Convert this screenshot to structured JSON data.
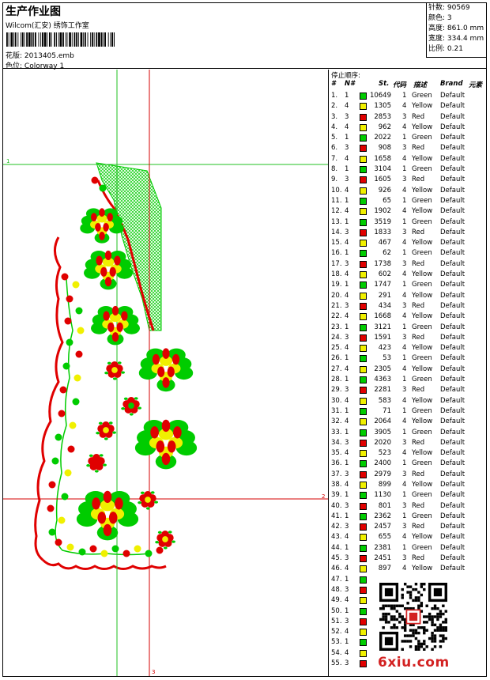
{
  "header": {
    "title": "生产作业图",
    "company": "Wilcom(汇安) 绣饰工作室",
    "design_label": "花版:",
    "design_value": "2013405.emb",
    "colorway_label": "色位:",
    "colorway_value": "Colorway 1"
  },
  "stats": {
    "stitches_label": "针数:",
    "stitches_value": "90569",
    "colors_label": "颜色:",
    "colors_value": "3",
    "height_label": "高度:",
    "height_value": "861.0 mm",
    "width_label": "宽度:",
    "width_value": "334.4 mm",
    "scale_label": "比例:",
    "scale_value": "0.21"
  },
  "canvas": {
    "origin_label": "1",
    "right_marker": "2",
    "bottom_marker": "3"
  },
  "stop_sequence": {
    "title": "停止顺序:",
    "headers": {
      "index": "#",
      "needle": "N#",
      "stitches": "St.",
      "code": "代码",
      "desc": "描述",
      "brand": "Brand",
      "element": "元素"
    },
    "rows": [
      {
        "i": "1.",
        "n": "1",
        "st": "10649",
        "c": "1",
        "d": "Green",
        "b": "Default",
        "color": "#00cc00"
      },
      {
        "i": "2.",
        "n": "4",
        "st": "1305",
        "c": "4",
        "d": "Yellow",
        "b": "Default",
        "color": "#f0f000"
      },
      {
        "i": "3.",
        "n": "3",
        "st": "2853",
        "c": "3",
        "d": "Red",
        "b": "Default",
        "color": "#e00000"
      },
      {
        "i": "4.",
        "n": "4",
        "st": "962",
        "c": "4",
        "d": "Yellow",
        "b": "Default",
        "color": "#f0f000"
      },
      {
        "i": "5.",
        "n": "1",
        "st": "2022",
        "c": "1",
        "d": "Green",
        "b": "Default",
        "color": "#00cc00"
      },
      {
        "i": "6.",
        "n": "3",
        "st": "908",
        "c": "3",
        "d": "Red",
        "b": "Default",
        "color": "#e00000"
      },
      {
        "i": "7.",
        "n": "4",
        "st": "1658",
        "c": "4",
        "d": "Yellow",
        "b": "Default",
        "color": "#f0f000"
      },
      {
        "i": "8.",
        "n": "1",
        "st": "3104",
        "c": "1",
        "d": "Green",
        "b": "Default",
        "color": "#00cc00"
      },
      {
        "i": "9.",
        "n": "3",
        "st": "1605",
        "c": "3",
        "d": "Red",
        "b": "Default",
        "color": "#e00000"
      },
      {
        "i": "10.",
        "n": "4",
        "st": "926",
        "c": "4",
        "d": "Yellow",
        "b": "Default",
        "color": "#f0f000"
      },
      {
        "i": "11.",
        "n": "1",
        "st": "65",
        "c": "1",
        "d": "Green",
        "b": "Default",
        "color": "#00cc00"
      },
      {
        "i": "12.",
        "n": "4",
        "st": "1902",
        "c": "4",
        "d": "Yellow",
        "b": "Default",
        "color": "#f0f000"
      },
      {
        "i": "13.",
        "n": "1",
        "st": "3519",
        "c": "1",
        "d": "Green",
        "b": "Default",
        "color": "#00cc00"
      },
      {
        "i": "14.",
        "n": "3",
        "st": "1833",
        "c": "3",
        "d": "Red",
        "b": "Default",
        "color": "#e00000"
      },
      {
        "i": "15.",
        "n": "4",
        "st": "467",
        "c": "4",
        "d": "Yellow",
        "b": "Default",
        "color": "#f0f000"
      },
      {
        "i": "16.",
        "n": "1",
        "st": "62",
        "c": "1",
        "d": "Green",
        "b": "Default",
        "color": "#00cc00"
      },
      {
        "i": "17.",
        "n": "3",
        "st": "1738",
        "c": "3",
        "d": "Red",
        "b": "Default",
        "color": "#e00000"
      },
      {
        "i": "18.",
        "n": "4",
        "st": "602",
        "c": "4",
        "d": "Yellow",
        "b": "Default",
        "color": "#f0f000"
      },
      {
        "i": "19.",
        "n": "1",
        "st": "1747",
        "c": "1",
        "d": "Green",
        "b": "Default",
        "color": "#00cc00"
      },
      {
        "i": "20.",
        "n": "4",
        "st": "291",
        "c": "4",
        "d": "Yellow",
        "b": "Default",
        "color": "#f0f000"
      },
      {
        "i": "21.",
        "n": "3",
        "st": "434",
        "c": "3",
        "d": "Red",
        "b": "Default",
        "color": "#e00000"
      },
      {
        "i": "22.",
        "n": "4",
        "st": "1668",
        "c": "4",
        "d": "Yellow",
        "b": "Default",
        "color": "#f0f000"
      },
      {
        "i": "23.",
        "n": "1",
        "st": "3121",
        "c": "1",
        "d": "Green",
        "b": "Default",
        "color": "#00cc00"
      },
      {
        "i": "24.",
        "n": "3",
        "st": "1591",
        "c": "3",
        "d": "Red",
        "b": "Default",
        "color": "#e00000"
      },
      {
        "i": "25.",
        "n": "4",
        "st": "423",
        "c": "4",
        "d": "Yellow",
        "b": "Default",
        "color": "#f0f000"
      },
      {
        "i": "26.",
        "n": "1",
        "st": "53",
        "c": "1",
        "d": "Green",
        "b": "Default",
        "color": "#00cc00"
      },
      {
        "i": "27.",
        "n": "4",
        "st": "2305",
        "c": "4",
        "d": "Yellow",
        "b": "Default",
        "color": "#f0f000"
      },
      {
        "i": "28.",
        "n": "1",
        "st": "4363",
        "c": "1",
        "d": "Green",
        "b": "Default",
        "color": "#00cc00"
      },
      {
        "i": "29.",
        "n": "3",
        "st": "2281",
        "c": "3",
        "d": "Red",
        "b": "Default",
        "color": "#e00000"
      },
      {
        "i": "30.",
        "n": "4",
        "st": "583",
        "c": "4",
        "d": "Yellow",
        "b": "Default",
        "color": "#f0f000"
      },
      {
        "i": "31.",
        "n": "1",
        "st": "71",
        "c": "1",
        "d": "Green",
        "b": "Default",
        "color": "#00cc00"
      },
      {
        "i": "32.",
        "n": "4",
        "st": "2064",
        "c": "4",
        "d": "Yellow",
        "b": "Default",
        "color": "#f0f000"
      },
      {
        "i": "33.",
        "n": "1",
        "st": "3905",
        "c": "1",
        "d": "Green",
        "b": "Default",
        "color": "#00cc00"
      },
      {
        "i": "34.",
        "n": "3",
        "st": "2020",
        "c": "3",
        "d": "Red",
        "b": "Default",
        "color": "#e00000"
      },
      {
        "i": "35.",
        "n": "4",
        "st": "523",
        "c": "4",
        "d": "Yellow",
        "b": "Default",
        "color": "#f0f000"
      },
      {
        "i": "36.",
        "n": "1",
        "st": "2400",
        "c": "1",
        "d": "Green",
        "b": "Default",
        "color": "#00cc00"
      },
      {
        "i": "37.",
        "n": "3",
        "st": "2979",
        "c": "3",
        "d": "Red",
        "b": "Default",
        "color": "#e00000"
      },
      {
        "i": "38.",
        "n": "4",
        "st": "899",
        "c": "4",
        "d": "Yellow",
        "b": "Default",
        "color": "#f0f000"
      },
      {
        "i": "39.",
        "n": "1",
        "st": "1130",
        "c": "1",
        "d": "Green",
        "b": "Default",
        "color": "#00cc00"
      },
      {
        "i": "40.",
        "n": "3",
        "st": "801",
        "c": "3",
        "d": "Red",
        "b": "Default",
        "color": "#e00000"
      },
      {
        "i": "41.",
        "n": "1",
        "st": "2362",
        "c": "1",
        "d": "Green",
        "b": "Default",
        "color": "#00cc00"
      },
      {
        "i": "42.",
        "n": "3",
        "st": "2457",
        "c": "3",
        "d": "Red",
        "b": "Default",
        "color": "#e00000"
      },
      {
        "i": "43.",
        "n": "4",
        "st": "655",
        "c": "4",
        "d": "Yellow",
        "b": "Default",
        "color": "#f0f000"
      },
      {
        "i": "44.",
        "n": "1",
        "st": "2381",
        "c": "1",
        "d": "Green",
        "b": "Default",
        "color": "#00cc00"
      },
      {
        "i": "45.",
        "n": "3",
        "st": "2451",
        "c": "3",
        "d": "Red",
        "b": "Default",
        "color": "#e00000"
      },
      {
        "i": "46.",
        "n": "4",
        "st": "897",
        "c": "4",
        "d": "Yellow",
        "b": "Default",
        "color": "#f0f000"
      },
      {
        "i": "47.",
        "n": "1",
        "st": "",
        "c": "",
        "d": "",
        "b": "",
        "color": "#00cc00"
      },
      {
        "i": "48.",
        "n": "3",
        "st": "",
        "c": "",
        "d": "",
        "b": "",
        "color": "#e00000"
      },
      {
        "i": "49.",
        "n": "4",
        "st": "",
        "c": "",
        "d": "",
        "b": "",
        "color": "#f0f000"
      },
      {
        "i": "50.",
        "n": "1",
        "st": "",
        "c": "",
        "d": "",
        "b": "",
        "color": "#00cc00"
      },
      {
        "i": "51.",
        "n": "3",
        "st": "",
        "c": "",
        "d": "",
        "b": "",
        "color": "#e00000"
      },
      {
        "i": "52.",
        "n": "4",
        "st": "",
        "c": "",
        "d": "",
        "b": "",
        "color": "#f0f000"
      },
      {
        "i": "53.",
        "n": "1",
        "st": "",
        "c": "",
        "d": "",
        "b": "",
        "color": "#00cc00"
      },
      {
        "i": "54.",
        "n": "4",
        "st": "",
        "c": "",
        "d": "",
        "b": "",
        "color": "#f0f000"
      },
      {
        "i": "55.",
        "n": "3",
        "st": "",
        "c": "",
        "d": "",
        "b": "",
        "color": "#e00000"
      }
    ]
  },
  "watermark": "6xiu.com",
  "colors": {
    "green": "#00cc00",
    "yellow": "#f0f000",
    "red": "#e00000",
    "guide_red": "#d40000",
    "guide_green": "#22c022"
  }
}
